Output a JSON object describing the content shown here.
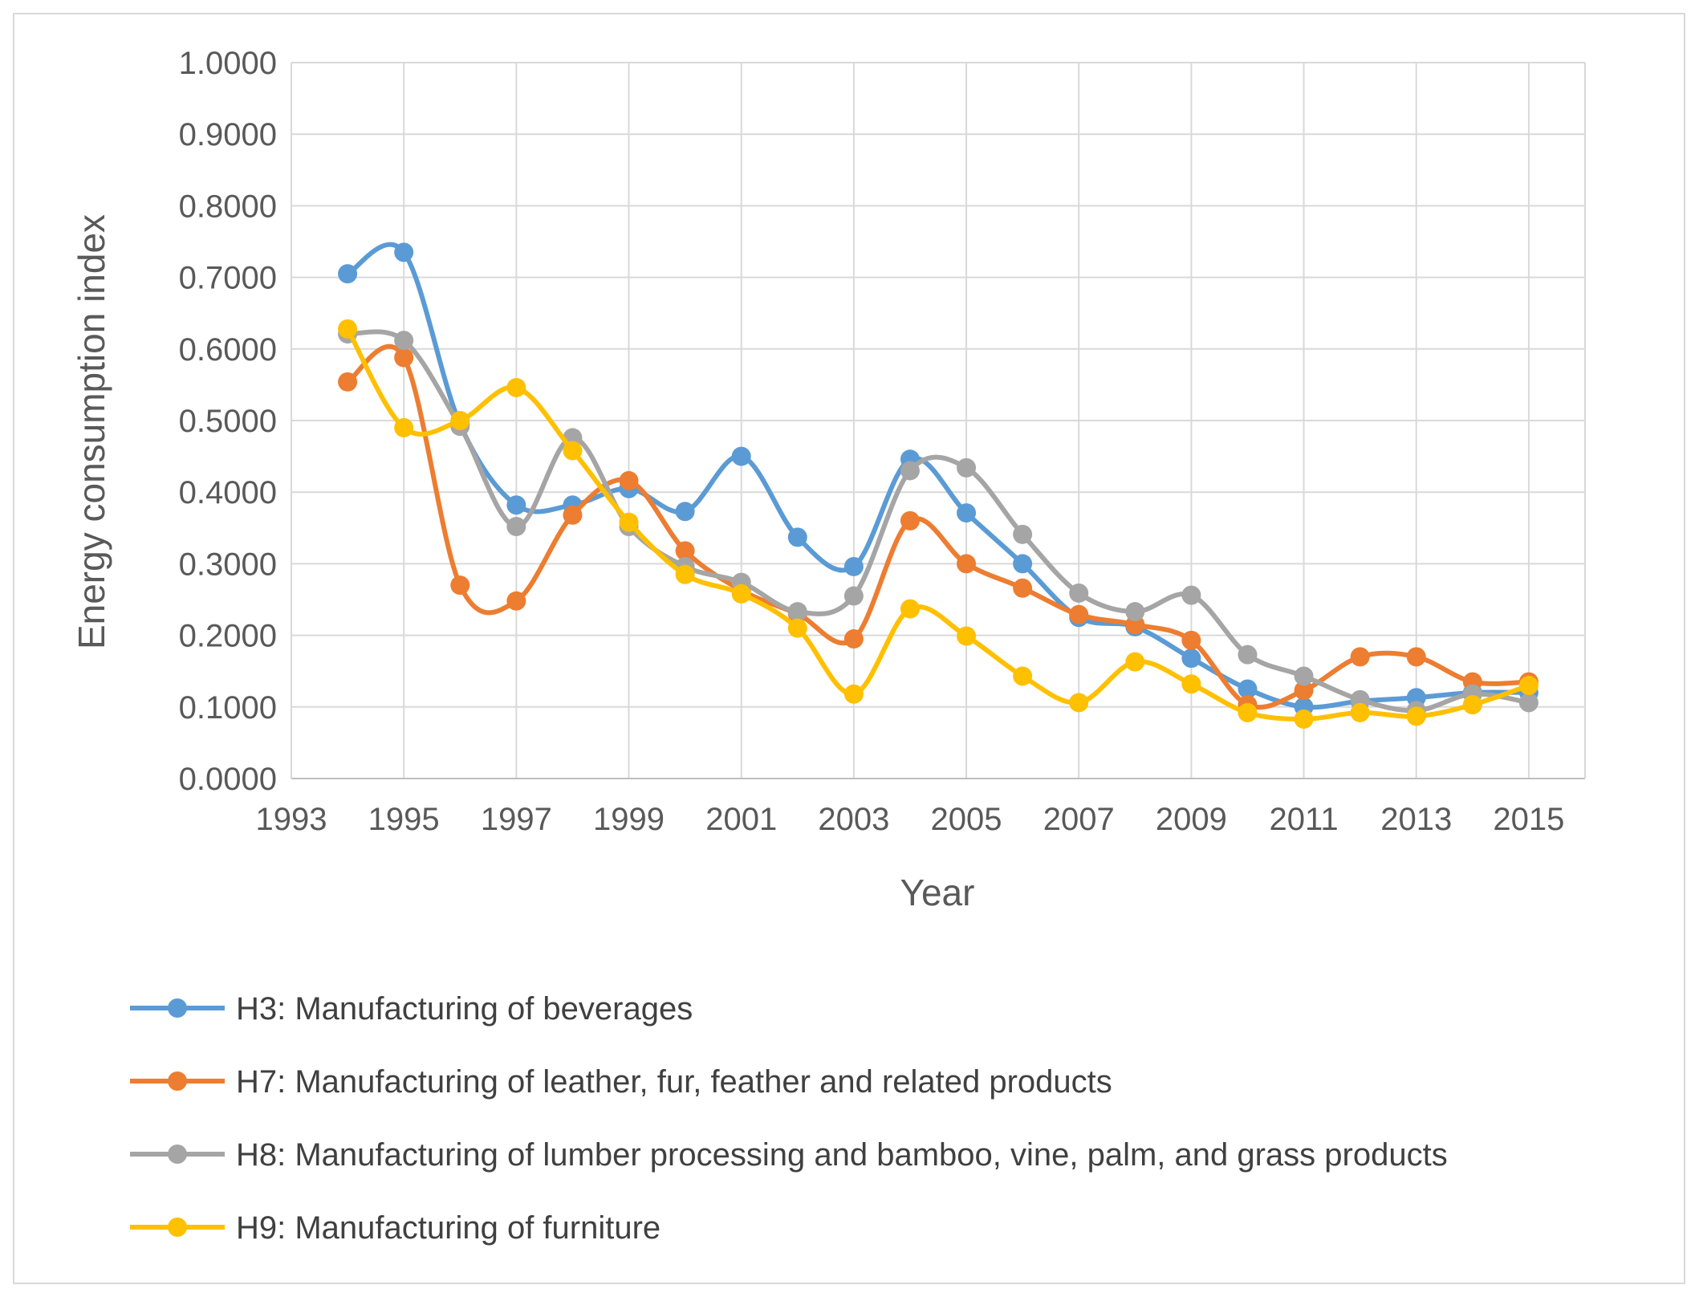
{
  "chart_data": {
    "type": "line",
    "title": "",
    "xlabel": "Year",
    "ylabel": "Energy consumption index",
    "xlim": [
      1993,
      2016
    ],
    "ylim": [
      0,
      1
    ],
    "x_ticks": [
      "1993",
      "1995",
      "1997",
      "1999",
      "2001",
      "2003",
      "2005",
      "2007",
      "2009",
      "2011",
      "2013",
      "2015"
    ],
    "y_ticks": [
      "0.0000",
      "0.1000",
      "0.2000",
      "0.3000",
      "0.4000",
      "0.5000",
      "0.6000",
      "0.7000",
      "0.8000",
      "0.9000",
      "1.0000"
    ],
    "grid": true,
    "legend_position": "bottom",
    "x": [
      1994,
      1995,
      1996,
      1997,
      1998,
      1999,
      2000,
      2001,
      2002,
      2003,
      2004,
      2005,
      2006,
      2007,
      2008,
      2009,
      2010,
      2011,
      2012,
      2013,
      2014,
      2015
    ],
    "series": [
      {
        "name": "H3: Manufacturing of beverages",
        "color": "#5b9bd5",
        "values": [
          0.705,
          0.735,
          0.495,
          0.382,
          0.382,
          0.405,
          0.373,
          0.45,
          0.337,
          0.296,
          0.446,
          0.371,
          0.3,
          0.225,
          0.212,
          0.168,
          0.125,
          0.1,
          0.108,
          0.113,
          0.12,
          0.12
        ]
      },
      {
        "name": "H7: Manufacturing of leather, fur, feather and related products",
        "color": "#ed7d31",
        "values": [
          0.554,
          0.588,
          0.27,
          0.248,
          0.368,
          0.416,
          0.318,
          0.263,
          0.23,
          0.195,
          0.36,
          0.3,
          0.266,
          0.229,
          0.215,
          0.193,
          0.103,
          0.123,
          0.17,
          0.17,
          0.135,
          0.135
        ]
      },
      {
        "name": "H8: Manufacturing of lumber processing and bamboo, vine, palm, and grass products",
        "color": "#a5a5a5",
        "values": [
          0.621,
          0.612,
          0.492,
          0.352,
          0.476,
          0.352,
          0.296,
          0.274,
          0.233,
          0.255,
          0.43,
          0.434,
          0.341,
          0.259,
          0.233,
          0.256,
          0.173,
          0.143,
          0.11,
          0.095,
          0.118,
          0.106
        ]
      },
      {
        "name": "H9: Manufacturing of furniture",
        "color": "#ffc000",
        "values": [
          0.628,
          0.49,
          0.5,
          0.546,
          0.458,
          0.358,
          0.285,
          0.258,
          0.21,
          0.118,
          0.237,
          0.199,
          0.143,
          0.106,
          0.163,
          0.132,
          0.092,
          0.083,
          0.092,
          0.087,
          0.103,
          0.13
        ]
      }
    ]
  }
}
